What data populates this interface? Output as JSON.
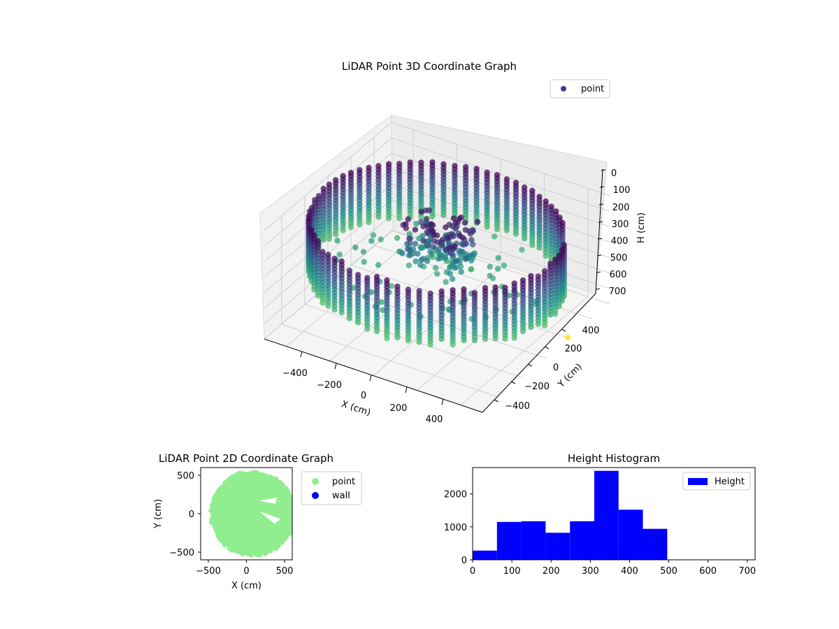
{
  "colors": {
    "wall_points_top": "#440154",
    "wall_points_bottom": "#5ec962",
    "point_legend": "#3b3f8a",
    "scatter2d_point": "#90ee90",
    "scatter2d_wall": "#0000ff",
    "histogram": "#0000ff",
    "outlier": "#fde725"
  },
  "chart_data": [
    {
      "type": "scatter",
      "projection": "3d",
      "title": "LiDAR Point 3D Coordinate Graph",
      "xlabel": "X (cm)",
      "ylabel": "Y (cm)",
      "zlabel": "H (cm)",
      "xticks": [
        "−400",
        "−200",
        "0",
        "200",
        "400"
      ],
      "yticks": [
        "−400",
        "−200",
        "0",
        "200",
        "400"
      ],
      "zticks": [
        "0",
        "100",
        "200",
        "300",
        "400",
        "500",
        "600",
        "700"
      ],
      "xlim": [
        -500,
        500
      ],
      "ylim": [
        -550,
        550
      ],
      "zlim": [
        0,
        700
      ],
      "z_axis_inverted": true,
      "colormap": "viridis",
      "legend": [
        "point"
      ],
      "legend_position": "top-right",
      "grid": true,
      "shape": "ring of vertical point columns (cylindrical wall) with interior structures",
      "wall_radius_cm": 520,
      "wall_height_range": [
        80,
        460
      ]
    },
    {
      "type": "scatter",
      "title": "LiDAR Point 2D Coordinate Graph",
      "xlabel": "X (cm)",
      "ylabel": "Y (cm)",
      "xticks": [
        "−500",
        "0",
        "500"
      ],
      "yticks": [
        "−500",
        "0",
        "500"
      ],
      "xlim": [
        -600,
        600
      ],
      "ylim": [
        -600,
        600
      ],
      "legend": [
        "point",
        "wall"
      ],
      "legend_position": "outside-right",
      "series": [
        {
          "name": "point",
          "region": "filled disc",
          "center": [
            80,
            0
          ],
          "radius": 540,
          "holes": [
            [
              [
                170,
                170
              ],
              [
                400,
                210
              ],
              [
                380,
                130
              ],
              [
                210,
                160
              ]
            ],
            [
              [
                170,
                30
              ],
              [
                450,
                -70
              ],
              [
                370,
                -130
              ],
              [
                230,
                -20
              ]
            ]
          ]
        },
        {
          "name": "wall",
          "points": []
        }
      ]
    },
    {
      "type": "bar",
      "subtype": "histogram",
      "title": "Height Histogram",
      "xticks": [
        "0",
        "100",
        "200",
        "300",
        "400",
        "500",
        "600",
        "700"
      ],
      "yticks": [
        "0",
        "1000",
        "2000"
      ],
      "xlim": [
        0,
        720
      ],
      "ylim": [
        0,
        2800
      ],
      "legend": [
        "Height"
      ],
      "legend_position": "top-right",
      "bin_edges": [
        0,
        62,
        124,
        186,
        248,
        310,
        372,
        434,
        496,
        558,
        620,
        682
      ],
      "series": [
        {
          "name": "Height",
          "values": [
            280,
            1150,
            1170,
            820,
            1170,
            2700,
            1520,
            940,
            0,
            0,
            0
          ]
        }
      ]
    }
  ]
}
